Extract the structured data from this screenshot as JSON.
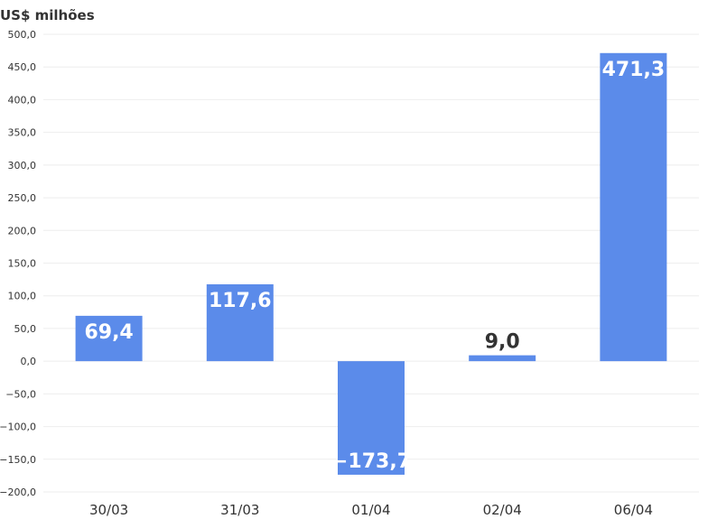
{
  "chart_data": {
    "type": "bar",
    "unit_label": "US$ milhões",
    "categories": [
      "30/03",
      "31/03",
      "01/04",
      "02/04",
      "06/04"
    ],
    "values": [
      69.4,
      117.6,
      -173.7,
      9.0,
      471.3
    ],
    "value_labels": [
      "69,4",
      "117,6",
      "−173,7",
      "9,0",
      "471,3"
    ],
    "ylim": [
      -200,
      500
    ],
    "yticks": [
      {
        "value": 500,
        "label": "500,0"
      },
      {
        "value": 450,
        "label": "450,0"
      },
      {
        "value": 400,
        "label": "400,0"
      },
      {
        "value": 350,
        "label": "350,0"
      },
      {
        "value": 300,
        "label": "300,0"
      },
      {
        "value": 250,
        "label": "250,0"
      },
      {
        "value": 200,
        "label": "200,0"
      },
      {
        "value": 150,
        "label": "150,0"
      },
      {
        "value": 100,
        "label": "100,0"
      },
      {
        "value": 50,
        "label": "50,0"
      },
      {
        "value": 0,
        "label": "0,0"
      },
      {
        "value": -50,
        "label": "−50,0"
      },
      {
        "value": -100,
        "label": "−100,0"
      },
      {
        "value": -150,
        "label": "−150,0"
      },
      {
        "value": -200,
        "label": "−200,0"
      }
    ],
    "grid": true,
    "colors": {
      "bar": "#5b8bea",
      "grid": "#eeeeee",
      "axis_text": "#333333",
      "label_inside": "#ffffff",
      "label_outside": "#333333"
    }
  }
}
